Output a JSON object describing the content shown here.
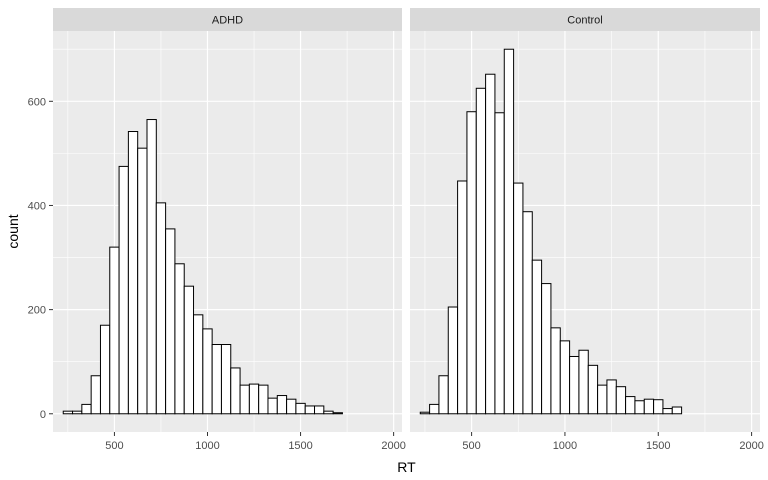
{
  "chart_data": {
    "type": "bar",
    "subtype": "histogram",
    "xlabel": "RT",
    "ylabel": "count",
    "xlim": [
      170,
      2045
    ],
    "ylim": [
      -35,
      735
    ],
    "x_ticks": [
      500,
      1000,
      1500,
      2000
    ],
    "y_ticks": [
      0,
      200,
      400,
      600
    ],
    "bin_width": 50,
    "grid": true,
    "theme_colors": {
      "panel_bg": "#EBEBEB",
      "grid_major": "#FFFFFF",
      "strip_bg": "#D9D9D9",
      "bar_fill": "#FFFFFF",
      "bar_stroke": "#000000"
    },
    "panels": [
      {
        "name": "ADHD",
        "bins": [
          {
            "x": 250,
            "count": 5
          },
          {
            "x": 300,
            "count": 5
          },
          {
            "x": 350,
            "count": 18
          },
          {
            "x": 400,
            "count": 73
          },
          {
            "x": 450,
            "count": 170
          },
          {
            "x": 500,
            "count": 320
          },
          {
            "x": 550,
            "count": 475
          },
          {
            "x": 600,
            "count": 542
          },
          {
            "x": 650,
            "count": 510
          },
          {
            "x": 700,
            "count": 565
          },
          {
            "x": 750,
            "count": 405
          },
          {
            "x": 800,
            "count": 355
          },
          {
            "x": 850,
            "count": 288
          },
          {
            "x": 900,
            "count": 245
          },
          {
            "x": 950,
            "count": 190
          },
          {
            "x": 1000,
            "count": 163
          },
          {
            "x": 1050,
            "count": 133
          },
          {
            "x": 1100,
            "count": 133
          },
          {
            "x": 1150,
            "count": 88
          },
          {
            "x": 1200,
            "count": 55
          },
          {
            "x": 1250,
            "count": 57
          },
          {
            "x": 1300,
            "count": 55
          },
          {
            "x": 1350,
            "count": 30
          },
          {
            "x": 1400,
            "count": 35
          },
          {
            "x": 1450,
            "count": 28
          },
          {
            "x": 1500,
            "count": 20
          },
          {
            "x": 1550,
            "count": 15
          },
          {
            "x": 1600,
            "count": 15
          },
          {
            "x": 1650,
            "count": 5
          },
          {
            "x": 1700,
            "count": 2
          }
        ]
      },
      {
        "name": "Control",
        "bins": [
          {
            "x": 250,
            "count": 3
          },
          {
            "x": 300,
            "count": 18
          },
          {
            "x": 350,
            "count": 73
          },
          {
            "x": 400,
            "count": 205
          },
          {
            "x": 450,
            "count": 447
          },
          {
            "x": 500,
            "count": 580
          },
          {
            "x": 550,
            "count": 625
          },
          {
            "x": 600,
            "count": 652
          },
          {
            "x": 650,
            "count": 578
          },
          {
            "x": 700,
            "count": 700
          },
          {
            "x": 750,
            "count": 443
          },
          {
            "x": 800,
            "count": 388
          },
          {
            "x": 850,
            "count": 295
          },
          {
            "x": 900,
            "count": 250
          },
          {
            "x": 950,
            "count": 165
          },
          {
            "x": 1000,
            "count": 140
          },
          {
            "x": 1050,
            "count": 110
          },
          {
            "x": 1100,
            "count": 122
          },
          {
            "x": 1150,
            "count": 93
          },
          {
            "x": 1200,
            "count": 55
          },
          {
            "x": 1250,
            "count": 65
          },
          {
            "x": 1300,
            "count": 52
          },
          {
            "x": 1350,
            "count": 33
          },
          {
            "x": 1400,
            "count": 25
          },
          {
            "x": 1450,
            "count": 28
          },
          {
            "x": 1500,
            "count": 27
          },
          {
            "x": 1550,
            "count": 10
          },
          {
            "x": 1600,
            "count": 13
          }
        ]
      }
    ]
  }
}
